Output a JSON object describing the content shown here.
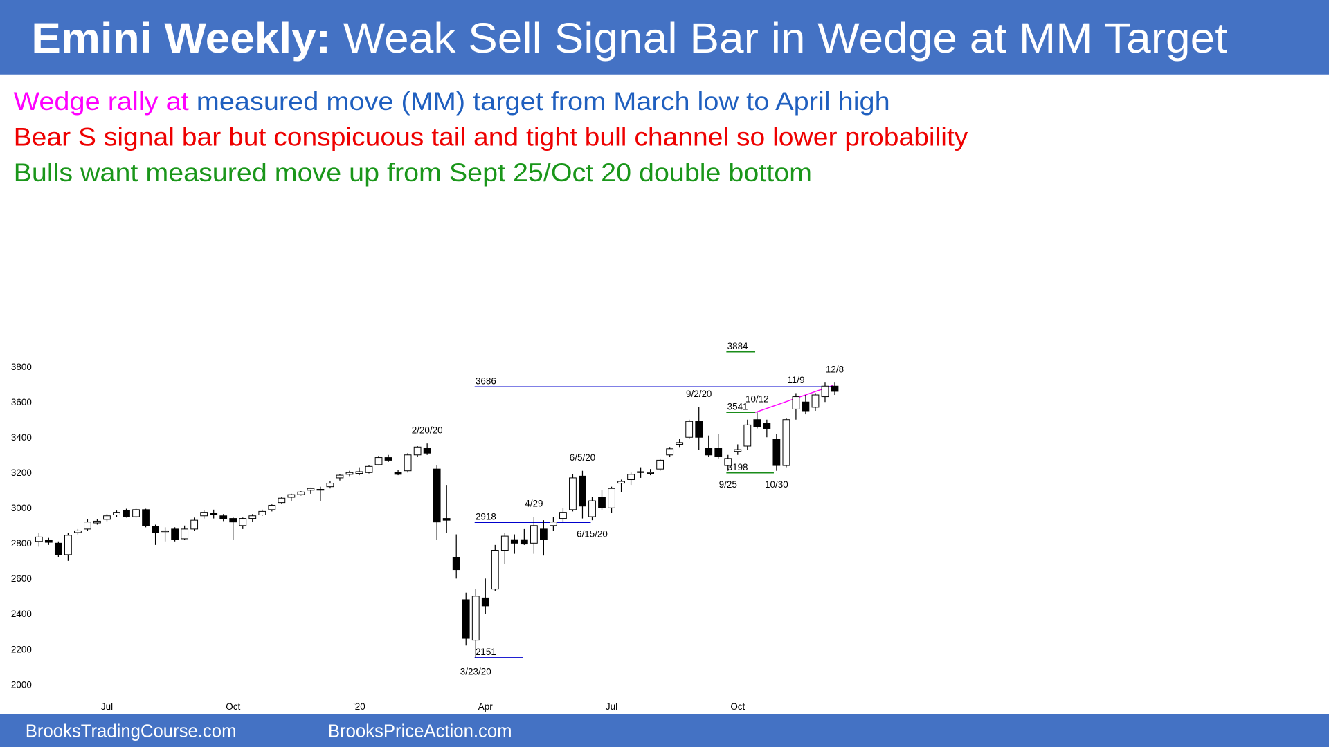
{
  "header": {
    "title_bold": "Emini Weekly:",
    "title_rest": "Weak Sell Signal Bar in Wedge at MM Target"
  },
  "notes": [
    {
      "parts": [
        {
          "text": "Wedge rally at",
          "color": "#ff00ff"
        },
        {
          "text": "measured move (MM) target from March low to April high",
          "color": "#1f5fbf"
        }
      ]
    },
    {
      "parts": [
        {
          "text": "Bear S signal bar but conspicuous tail and tight bull channel so lower probability",
          "color": "#ee0000"
        }
      ]
    },
    {
      "parts": [
        {
          "text": "Bulls want measured move up from Sept 25/Oct 20 double bottom",
          "color": "#1a961a"
        }
      ]
    }
  ],
  "footer": [
    "BrooksTradingCourse.com",
    "BrooksPriceAction.com"
  ],
  "chart_data": {
    "type": "candlestick",
    "up_color": "#ffffff",
    "down_color": "#000000",
    "label_color": "#ee0000",
    "ylim": [
      2000,
      3800
    ],
    "yticks": [
      2000,
      2200,
      2400,
      2600,
      2800,
      3000,
      3200,
      3400,
      3600,
      3800
    ],
    "grid": false,
    "categories": [
      null,
      null,
      null,
      null,
      null,
      null,
      null,
      "Jul",
      null,
      null,
      null,
      null,
      null,
      null,
      null,
      null,
      null,
      null,
      null,
      null,
      "Oct",
      null,
      null,
      null,
      null,
      null,
      null,
      null,
      null,
      null,
      null,
      null,
      null,
      "'20",
      null,
      null,
      null,
      null,
      null,
      null,
      null,
      null,
      null,
      null,
      null,
      null,
      "Apr",
      null,
      null,
      null,
      null,
      null,
      null,
      null,
      null,
      null,
      null,
      null,
      null,
      "Jul",
      null,
      null,
      null,
      null,
      null,
      null,
      null,
      null,
      null,
      null,
      null,
      null,
      "Oct",
      null,
      null,
      null,
      null,
      null,
      null,
      null,
      null,
      null,
      null
    ],
    "open": [
      2810,
      2815,
      2800,
      2735,
      2860,
      2880,
      2915,
      2935,
      2960,
      2985,
      2950,
      2990,
      2895,
      2865,
      2880,
      2825,
      2880,
      2955,
      2970,
      2955,
      2940,
      2900,
      2940,
      2960,
      2990,
      3030,
      3060,
      3075,
      3100,
      3100,
      3120,
      3170,
      3190,
      3195,
      3200,
      3245,
      3285,
      3200,
      3210,
      3300,
      3340,
      3220,
      2940,
      2720,
      2480,
      2250,
      2490,
      2540,
      2760,
      2820,
      2820,
      2800,
      2880,
      2900,
      2940,
      2990,
      3180,
      2950,
      3060,
      3000,
      3140,
      3160,
      3200,
      3195,
      3220,
      3300,
      3360,
      3400,
      3490,
      3340,
      3340,
      3240,
      3320,
      3350,
      3500,
      3480,
      3390,
      3240,
      3560,
      3600,
      3570,
      3630,
      3690
    ],
    "high": [
      2860,
      2830,
      2810,
      2860,
      2880,
      2935,
      2935,
      2965,
      2985,
      2995,
      2995,
      2995,
      2905,
      2890,
      2890,
      2900,
      2945,
      2985,
      2990,
      2965,
      2950,
      2945,
      2965,
      2990,
      3020,
      3060,
      3080,
      3095,
      3115,
      3120,
      3150,
      3190,
      3210,
      3230,
      3240,
      3295,
      3300,
      3215,
      3310,
      3350,
      3365,
      3240,
      3130,
      2850,
      2520,
      2540,
      2600,
      2790,
      2860,
      2850,
      2880,
      2950,
      2930,
      2950,
      3000,
      3190,
      3210,
      3060,
      3100,
      3120,
      3160,
      3200,
      3230,
      3220,
      3280,
      3345,
      3390,
      3500,
      3570,
      3410,
      3420,
      3300,
      3360,
      3500,
      3541,
      3500,
      3420,
      3510,
      3650,
      3640,
      3650,
      3710,
      3710
    ],
    "low": [
      2780,
      2790,
      2720,
      2700,
      2850,
      2870,
      2905,
      2925,
      2950,
      2945,
      2945,
      2890,
      2790,
      2810,
      2810,
      2820,
      2870,
      2940,
      2940,
      2925,
      2820,
      2880,
      2920,
      2955,
      2980,
      3025,
      3040,
      3070,
      3080,
      3040,
      3110,
      3155,
      3180,
      3185,
      3195,
      3240,
      3260,
      3185,
      3200,
      3290,
      3300,
      2820,
      2860,
      2600,
      2220,
      2151,
      2400,
      2530,
      2680,
      2740,
      2790,
      2740,
      2730,
      2870,
      2920,
      2980,
      2940,
      2930,
      2990,
      2970,
      3090,
      3130,
      3170,
      3185,
      3210,
      3290,
      3345,
      3390,
      3330,
      3290,
      3280,
      3210,
      3300,
      3330,
      3450,
      3400,
      3210,
      3230,
      3500,
      3530,
      3550,
      3600,
      3640
    ],
    "close": [
      2835,
      2805,
      2735,
      2845,
      2870,
      2920,
      2925,
      2955,
      2975,
      2950,
      2990,
      2900,
      2860,
      2870,
      2820,
      2880,
      2930,
      2975,
      2960,
      2940,
      2920,
      2940,
      2955,
      2980,
      3015,
      3055,
      3075,
      3090,
      3110,
      3105,
      3140,
      3185,
      3200,
      3205,
      3235,
      3285,
      3270,
      3190,
      3300,
      3345,
      3310,
      2920,
      2930,
      2650,
      2260,
      2500,
      2445,
      2760,
      2840,
      2800,
      2795,
      2900,
      2820,
      2920,
      2975,
      3170,
      3010,
      3040,
      3000,
      3110,
      3150,
      3190,
      3205,
      3200,
      3270,
      3335,
      3370,
      3490,
      3400,
      3300,
      3290,
      3280,
      3330,
      3470,
      3460,
      3450,
      3240,
      3500,
      3630,
      3550,
      3640,
      3690,
      3660
    ],
    "high_labels": [
      null,
      null,
      null,
      null,
      null,
      null,
      null,
      null,
      null,
      null,
      null,
      null,
      null,
      null,
      null,
      null,
      null,
      null,
      null,
      null,
      null,
      null,
      null,
      null,
      null,
      null,
      null,
      null,
      null,
      null,
      null,
      null,
      null,
      null,
      null,
      null,
      null,
      null,
      null,
      null,
      "2/20/20",
      null,
      null,
      null,
      null,
      null,
      null,
      null,
      null,
      null,
      null,
      "4/29",
      null,
      null,
      null,
      null,
      "6/5/20",
      null,
      null,
      null,
      null,
      null,
      null,
      null,
      null,
      null,
      null,
      null,
      "9/2/20",
      null,
      null,
      null,
      null,
      null,
      "10/12",
      null,
      null,
      null,
      "11/9",
      null,
      null,
      null,
      "12/8"
    ],
    "low_labels": [
      null,
      null,
      null,
      null,
      null,
      null,
      null,
      null,
      null,
      null,
      null,
      null,
      null,
      null,
      null,
      null,
      null,
      null,
      null,
      null,
      null,
      null,
      null,
      null,
      null,
      null,
      null,
      null,
      null,
      null,
      null,
      null,
      null,
      null,
      null,
      null,
      null,
      null,
      null,
      null,
      null,
      null,
      null,
      null,
      null,
      "3/23/20",
      null,
      null,
      null,
      null,
      null,
      null,
      null,
      null,
      null,
      null,
      null,
      "6/15/20",
      null,
      null,
      null,
      null,
      null,
      null,
      null,
      null,
      null,
      null,
      null,
      null,
      null,
      "9/25",
      null,
      null,
      null,
      null,
      "10/30",
      null,
      null,
      null,
      null,
      null,
      null
    ],
    "levels": [
      {
        "value": 3884,
        "color": "#1a8c1a"
      },
      {
        "value": 3686,
        "color": "#0000cc"
      },
      {
        "value": 3541,
        "color": "#1a8c1a"
      },
      {
        "value": 3198,
        "color": "#1a8c1a"
      },
      {
        "value": 2918,
        "color": "#0000cc"
      },
      {
        "value": 2151,
        "color": "#0000cc"
      }
    ]
  }
}
